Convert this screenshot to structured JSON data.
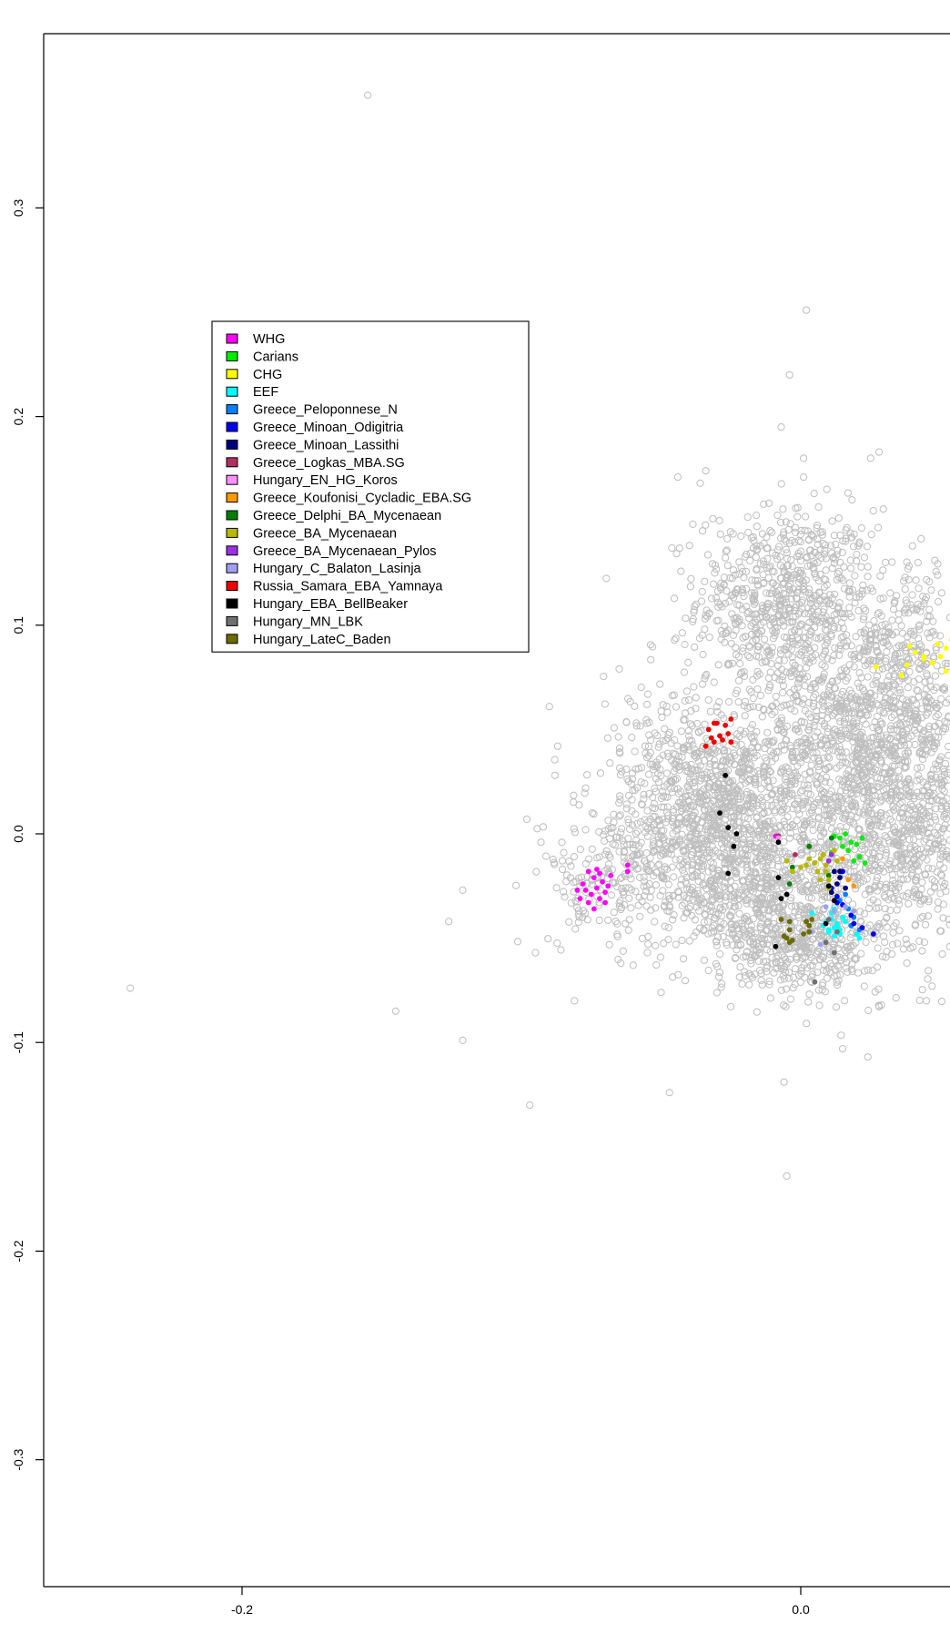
{
  "chart_data": {
    "type": "scatter",
    "title": "",
    "xlabel": "",
    "ylabel": "",
    "xlim": [
      -0.2715,
      0.054
    ],
    "ylim": [
      -0.361,
      0.384
    ],
    "x_ticks": [
      {
        "value": -0.2,
        "label": "-0.2"
      },
      {
        "value": 0.0,
        "label": "0.0"
      }
    ],
    "y_ticks": [
      {
        "value": 0.3,
        "label": "0.3"
      },
      {
        "value": 0.2,
        "label": "0.2"
      },
      {
        "value": 0.1,
        "label": "0.1"
      },
      {
        "value": 0.0,
        "label": "0.0"
      },
      {
        "value": -0.1,
        "label": "-0.1"
      },
      {
        "value": -0.2,
        "label": "-0.2"
      },
      {
        "value": -0.3,
        "label": "-0.3"
      }
    ],
    "grid": false,
    "legend_position": "top-left",
    "background_color": "#bebebe",
    "background_outliers": [
      [
        -0.155,
        0.354
      ],
      [
        0.002,
        0.251
      ],
      [
        -0.004,
        0.22
      ],
      [
        -0.007,
        0.195
      ],
      [
        0.001,
        0.18
      ],
      [
        0.025,
        0.18
      ],
      [
        0.028,
        0.183
      ],
      [
        0.001,
        0.171
      ],
      [
        -0.034,
        0.174
      ],
      [
        -0.036,
        0.168
      ],
      [
        -0.044,
        0.171
      ],
      [
        -0.24,
        -0.074
      ],
      [
        -0.145,
        -0.085
      ],
      [
        -0.126,
        -0.042
      ],
      [
        -0.121,
        -0.027
      ],
      [
        -0.121,
        -0.099
      ],
      [
        -0.097,
        -0.13
      ],
      [
        -0.09,
        0.061
      ],
      [
        -0.087,
        0.042
      ],
      [
        -0.088,
        0.028
      ],
      [
        -0.098,
        0.007
      ],
      [
        -0.093,
        -0.004
      ],
      [
        -0.095,
        -0.057
      ],
      [
        -0.081,
        -0.08
      ],
      [
        -0.047,
        -0.124
      ],
      [
        -0.006,
        -0.119
      ],
      [
        -0.005,
        -0.164
      ],
      [
        0.015,
        -0.103
      ],
      [
        0.024,
        -0.107
      ],
      [
        0.045,
        -0.08
      ],
      [
        0.047,
        -0.073
      ],
      [
        0.048,
        0.131
      ],
      [
        0.049,
        0.124
      ],
      [
        0.04,
        0.138
      ],
      [
        -0.065,
        0.079
      ],
      [
        -0.079,
        -0.025
      ],
      [
        -0.06,
        -0.063
      ],
      [
        -0.05,
        -0.076
      ]
    ],
    "series": [
      {
        "name": "WHG",
        "color": "#ff00ff",
        "points": [
          [
            -0.076,
            -0.018
          ],
          [
            -0.074,
            -0.021
          ],
          [
            -0.072,
            -0.019
          ],
          [
            -0.078,
            -0.024
          ],
          [
            -0.077,
            -0.027
          ],
          [
            -0.075,
            -0.029
          ],
          [
            -0.073,
            -0.026
          ],
          [
            -0.071,
            -0.023
          ],
          [
            -0.07,
            -0.028
          ],
          [
            -0.079,
            -0.031
          ],
          [
            -0.076,
            -0.033
          ],
          [
            -0.074,
            -0.036
          ],
          [
            -0.072,
            -0.031
          ],
          [
            -0.069,
            -0.025
          ],
          [
            -0.068,
            -0.02
          ],
          [
            -0.08,
            -0.027
          ],
          [
            -0.073,
            -0.017
          ],
          [
            -0.07,
            -0.033
          ],
          [
            -0.062,
            -0.015
          ],
          [
            -0.062,
            -0.018
          ],
          [
            -0.009,
            -0.001
          ]
        ]
      },
      {
        "name": "Carians",
        "color": "#00ee00",
        "points": [
          [
            0.014,
            -0.002
          ],
          [
            0.016,
            0.0
          ],
          [
            0.018,
            -0.004
          ],
          [
            0.015,
            -0.006
          ],
          [
            0.017,
            -0.008
          ],
          [
            0.02,
            -0.005
          ],
          [
            0.022,
            -0.002
          ],
          [
            0.021,
            -0.011
          ],
          [
            0.012,
            -0.001
          ],
          [
            0.019,
            -0.013
          ],
          [
            0.011,
            -0.009
          ],
          [
            0.023,
            -0.014
          ]
        ]
      },
      {
        "name": "CHG",
        "color": "#ffff00",
        "points": [
          [
            0.039,
            0.09
          ],
          [
            0.041,
            0.087
          ],
          [
            0.044,
            0.084
          ],
          [
            0.047,
            0.082
          ],
          [
            0.05,
            0.085
          ],
          [
            0.052,
            0.089
          ],
          [
            0.054,
            0.093
          ],
          [
            0.036,
            0.076
          ],
          [
            0.038,
            0.081
          ],
          [
            0.049,
            0.091
          ],
          [
            0.052,
            0.078
          ],
          [
            0.027,
            0.08
          ],
          [
            0.044,
            0.085
          ]
        ]
      },
      {
        "name": "EEF",
        "color": "#00ffff",
        "points": [
          [
            0.011,
            -0.041
          ],
          [
            0.013,
            -0.043
          ],
          [
            0.012,
            -0.045
          ],
          [
            0.01,
            -0.047
          ],
          [
            0.014,
            -0.046
          ],
          [
            0.012,
            -0.049
          ],
          [
            0.009,
            -0.042
          ],
          [
            0.015,
            -0.04
          ],
          [
            0.011,
            -0.038
          ],
          [
            0.013,
            -0.044
          ],
          [
            0.01,
            -0.046
          ],
          [
            0.014,
            -0.048
          ],
          [
            0.016,
            -0.042
          ],
          [
            0.012,
            -0.036
          ],
          [
            0.008,
            -0.044
          ],
          [
            0.004,
            -0.038
          ],
          [
            0.02,
            -0.048
          ],
          [
            0.021,
            -0.05
          ]
        ]
      },
      {
        "name": "Greece_Peloponnese_N",
        "color": "#0080ff",
        "points": [
          [
            0.014,
            -0.032
          ],
          [
            0.017,
            -0.036
          ],
          [
            0.019,
            -0.04
          ],
          [
            0.018,
            -0.044
          ],
          [
            0.021,
            -0.046
          ],
          [
            0.016,
            -0.029
          ]
        ]
      },
      {
        "name": "Greece_Minoan_Odigitria",
        "color": "#0000ee",
        "points": [
          [
            0.011,
            -0.026
          ],
          [
            0.013,
            -0.03
          ],
          [
            0.015,
            -0.034
          ],
          [
            0.018,
            -0.039
          ],
          [
            0.019,
            -0.043
          ],
          [
            0.026,
            -0.048
          ],
          [
            0.022,
            -0.045
          ],
          [
            0.015,
            -0.018
          ],
          [
            0.013,
            -0.033
          ]
        ]
      },
      {
        "name": "Greece_Minoan_Lassithi",
        "color": "#00007f",
        "points": [
          [
            0.012,
            -0.018
          ],
          [
            0.014,
            -0.018
          ],
          [
            0.013,
            -0.024
          ],
          [
            0.016,
            -0.026
          ],
          [
            0.011,
            -0.028
          ],
          [
            0.014,
            -0.021
          ]
        ]
      },
      {
        "name": "Greece_Logkas_MBA.SG",
        "color": "#b03060",
        "points": [
          [
            -0.008,
            -0.001
          ],
          [
            -0.002,
            -0.01
          ]
        ]
      },
      {
        "name": "Hungary_EN_HG_Koros",
        "color": "#ff90ff",
        "points": [
          [
            -0.008,
            -0.002
          ]
        ]
      },
      {
        "name": "Greece_Koufonisi_Cycladic_EBA.SG",
        "color": "#ff9900",
        "points": [
          [
            0.019,
            -0.025
          ],
          [
            0.017,
            -0.022
          ],
          [
            0.015,
            -0.012
          ]
        ]
      },
      {
        "name": "Greece_Delphi_BA_Mycenaean",
        "color": "#007f00",
        "points": [
          [
            0.003,
            -0.006
          ],
          [
            -0.003,
            -0.016
          ],
          [
            -0.004,
            -0.024
          ],
          [
            0.011,
            -0.002
          ],
          [
            0.01,
            -0.02
          ]
        ]
      },
      {
        "name": "Greece_BA_Mycenaean",
        "color": "#b8b800",
        "points": [
          [
            -0.003,
            -0.018
          ],
          [
            0.0,
            -0.016
          ],
          [
            0.002,
            -0.015
          ],
          [
            0.005,
            -0.014
          ],
          [
            0.007,
            -0.012
          ],
          [
            0.009,
            -0.015
          ],
          [
            0.006,
            -0.018
          ],
          [
            0.01,
            -0.022
          ],
          [
            0.008,
            -0.01
          ],
          [
            0.012,
            -0.008
          ],
          [
            -0.005,
            -0.013
          ],
          [
            0.007,
            -0.022
          ],
          [
            0.003,
            -0.012
          ],
          [
            0.009,
            -0.018
          ],
          [
            0.01,
            -0.026
          ],
          [
            0.013,
            -0.013
          ]
        ]
      },
      {
        "name": "Greece_BA_Mycenaean_Pylos",
        "color": "#9a30e0",
        "points": [
          [
            0.011,
            -0.01
          ],
          [
            0.01,
            -0.013
          ]
        ]
      },
      {
        "name": "Hungary_C_Balaton_Lasinja",
        "color": "#a0a0f0",
        "points": [
          [
            0.009,
            -0.035
          ],
          [
            0.012,
            -0.037
          ],
          [
            0.016,
            -0.035
          ],
          [
            0.007,
            -0.053
          ],
          [
            0.019,
            -0.037
          ],
          [
            0.004,
            -0.047
          ]
        ]
      },
      {
        "name": "Russia_Samara_EBA_Yamnaya",
        "color": "#ee0000",
        "points": [
          [
            -0.031,
            0.053
          ],
          [
            -0.033,
            0.05
          ],
          [
            -0.029,
            0.047
          ],
          [
            -0.026,
            0.048
          ],
          [
            -0.028,
            0.045
          ],
          [
            -0.025,
            0.044
          ],
          [
            -0.034,
            0.042
          ],
          [
            -0.031,
            0.044
          ],
          [
            -0.03,
            0.053
          ],
          [
            -0.025,
            0.055
          ],
          [
            -0.027,
            0.052
          ],
          [
            -0.032,
            0.046
          ]
        ]
      },
      {
        "name": "Hungary_EBA_BellBeaker",
        "color": "#000000",
        "points": [
          [
            -0.027,
            0.028
          ],
          [
            -0.029,
            0.01
          ],
          [
            -0.026,
            0.003
          ],
          [
            -0.023,
            0.0
          ],
          [
            -0.024,
            -0.006
          ],
          [
            -0.026,
            -0.019
          ],
          [
            -0.008,
            -0.004
          ],
          [
            -0.008,
            -0.021
          ],
          [
            -0.007,
            -0.031
          ],
          [
            -0.005,
            -0.029
          ],
          [
            -0.009,
            -0.054
          ],
          [
            0.01,
            -0.025
          ],
          [
            0.012,
            -0.032
          ],
          [
            0.009,
            -0.043
          ]
        ]
      },
      {
        "name": "Hungary_MN_LBK",
        "color": "#707070",
        "points": [
          [
            0.005,
            -0.071
          ],
          [
            0.012,
            -0.057
          ],
          [
            0.01,
            -0.041
          ],
          [
            0.009,
            -0.052
          ],
          [
            0.013,
            -0.047
          ]
        ]
      },
      {
        "name": "Hungary_LateC_Baden",
        "color": "#6b6b00",
        "points": [
          [
            -0.007,
            -0.041
          ],
          [
            -0.004,
            -0.042
          ],
          [
            -0.004,
            -0.046
          ],
          [
            -0.005,
            -0.05
          ],
          [
            -0.004,
            -0.052
          ],
          [
            -0.006,
            -0.049
          ],
          [
            0.002,
            -0.042
          ],
          [
            0.003,
            -0.047
          ],
          [
            0.001,
            -0.048
          ],
          [
            0.004,
            -0.041
          ],
          [
            0.003,
            -0.044
          ],
          [
            -0.003,
            -0.051
          ]
        ]
      }
    ]
  }
}
